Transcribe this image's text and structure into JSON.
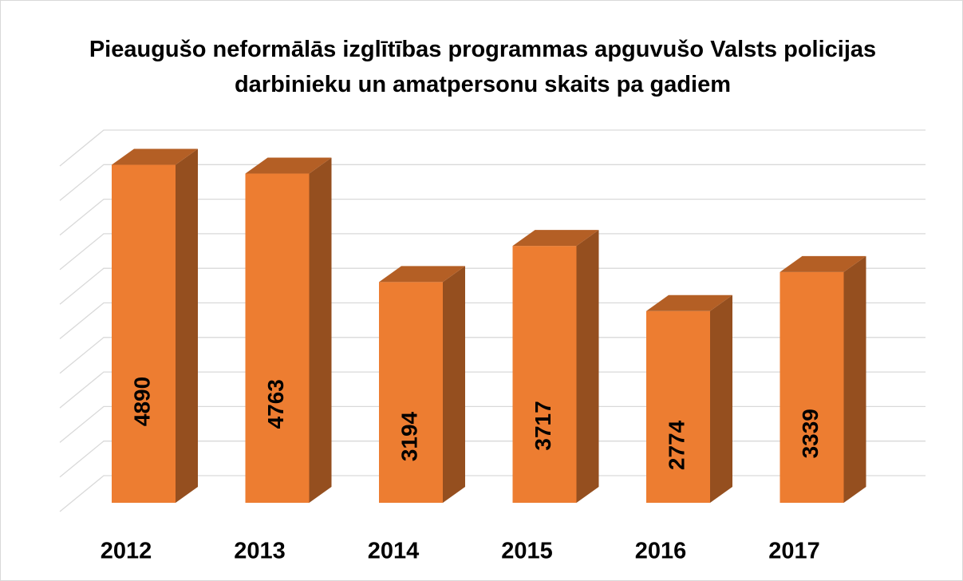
{
  "chart_data": {
    "type": "bar3d",
    "title": "Pieaugušo neformālās izglītības programmas apguvušo Valsts policijas darbinieku un amatpersonu skaits pa gadiem",
    "categories": [
      "2012",
      "2013",
      "2014",
      "2015",
      "2016",
      "2017"
    ],
    "values": [
      4890,
      4763,
      3194,
      3717,
      2774,
      3339
    ],
    "color": "#ed7d31",
    "ylim": [
      0,
      5000
    ],
    "yticks": [
      0,
      500,
      1000,
      1500,
      2000,
      2500,
      3000,
      3500,
      4000,
      4500,
      5000
    ],
    "grid": true
  }
}
